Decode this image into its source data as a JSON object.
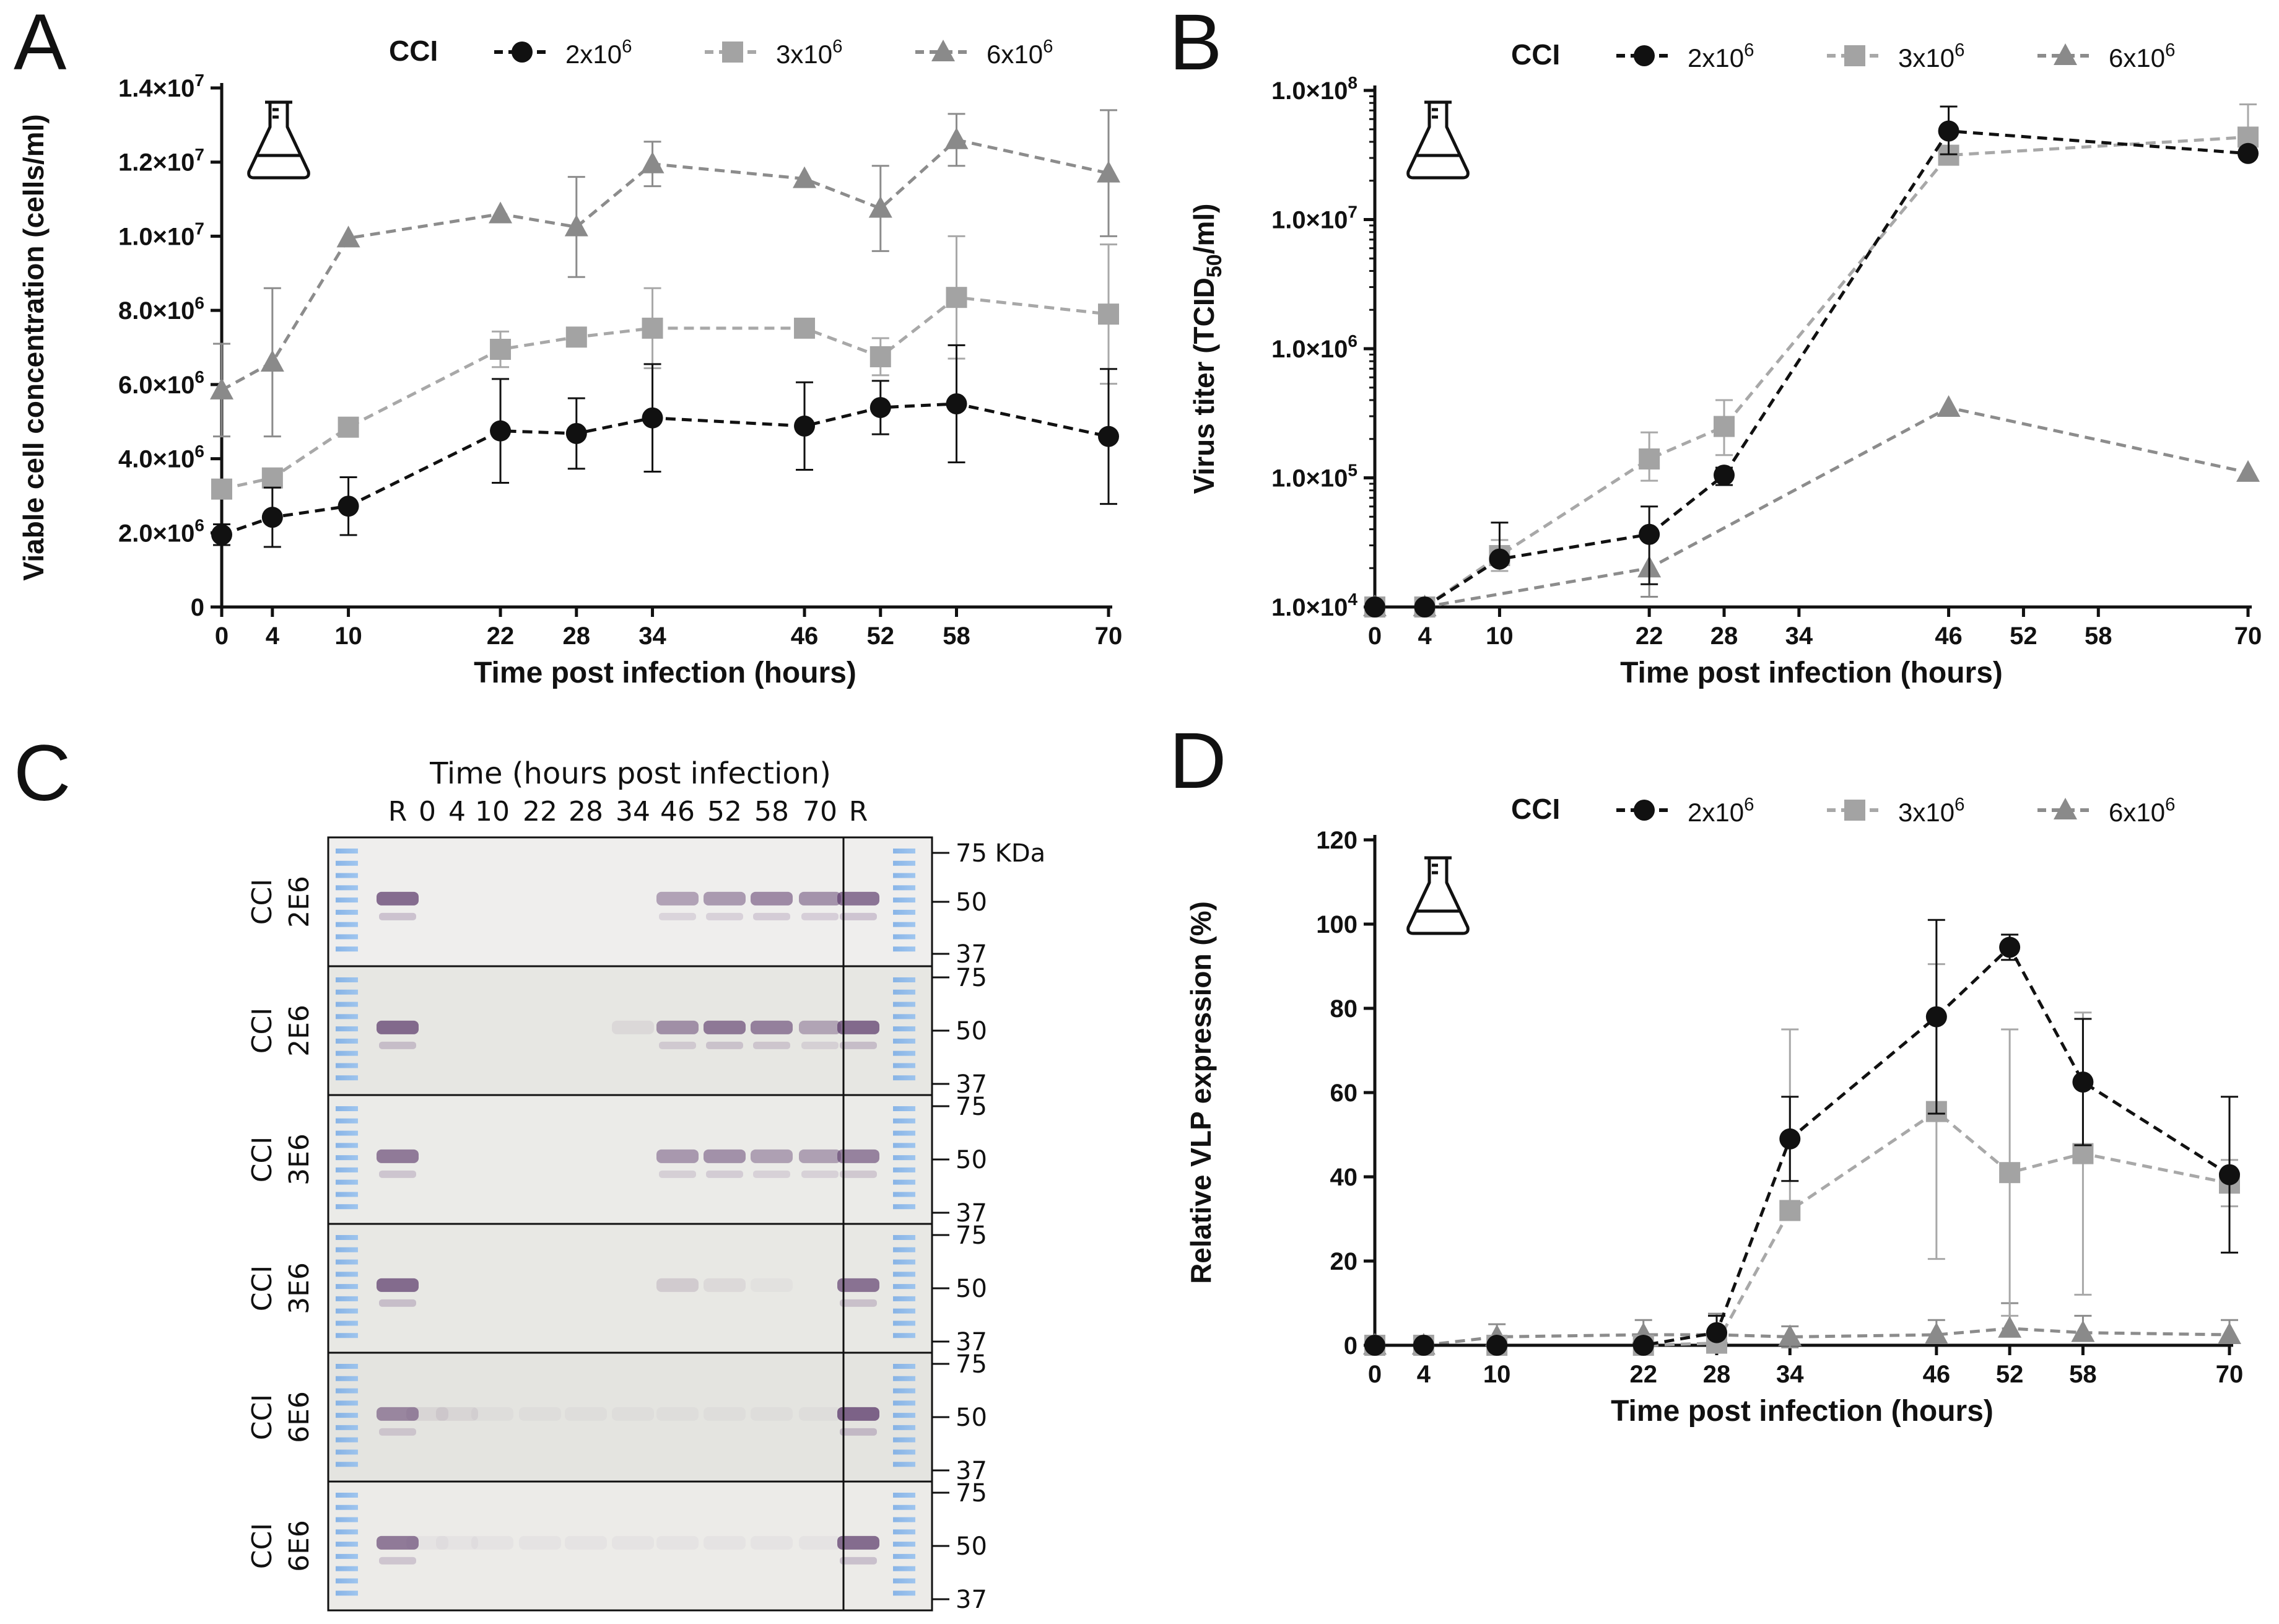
{
  "legend": {
    "label": "CCI",
    "series": [
      {
        "name": "2x10",
        "exp": "6",
        "color": "#111111",
        "marker": "circle"
      },
      {
        "name": "3x10",
        "exp": "6",
        "color": "#a3a3a3",
        "marker": "square"
      },
      {
        "name": "6x10",
        "exp": "6",
        "color": "#8a8a8a",
        "marker": "triangle"
      }
    ]
  },
  "chart_data": [
    {
      "panel": "A",
      "type": "line",
      "ylabel": "Viable cell concentration (cells/ml)",
      "xlabel": "Time post infection (hours)",
      "xticks": [
        0,
        4,
        10,
        22,
        28,
        34,
        46,
        52,
        58,
        70
      ],
      "ylim": [
        0,
        14000000
      ],
      "yticks": [
        {
          "v": 0,
          "base": "0",
          "exp": ""
        },
        {
          "v": 2000000,
          "base": "2.0×10",
          "exp": "6"
        },
        {
          "v": 4000000,
          "base": "4.0×10",
          "exp": "6"
        },
        {
          "v": 6000000,
          "base": "6.0×10",
          "exp": "6"
        },
        {
          "v": 8000000,
          "base": "8.0×10",
          "exp": "6"
        },
        {
          "v": 10000000,
          "base": "1.0×10",
          "exp": "7"
        },
        {
          "v": 12000000,
          "base": "1.2×10",
          "exp": "7"
        },
        {
          "v": 14000000,
          "base": "1.4×10",
          "exp": "7"
        }
      ],
      "series": [
        {
          "name": "2x10^6",
          "x": [
            0,
            4,
            10,
            22,
            28,
            34,
            46,
            52,
            58,
            70
          ],
          "y": [
            1950000,
            2420000,
            2720000,
            4750000,
            4680000,
            5100000,
            4880000,
            5380000,
            5480000,
            4600000
          ],
          "err": [
            280000,
            800000,
            780000,
            1400000,
            950000,
            1450000,
            1180000,
            720000,
            1580000,
            1820000
          ]
        },
        {
          "name": "3x10^6",
          "x": [
            0,
            4,
            10,
            22,
            28,
            34,
            46,
            52,
            58,
            70
          ],
          "y": [
            3180000,
            3480000,
            4850000,
            6950000,
            7280000,
            7520000,
            7520000,
            6750000,
            8350000,
            7900000
          ],
          "err": [
            0,
            0,
            0,
            480000,
            0,
            1080000,
            0,
            500000,
            1650000,
            1880000
          ]
        },
        {
          "name": "6x10^6",
          "x": [
            0,
            4,
            10,
            22,
            28,
            34,
            46,
            52,
            58,
            70
          ],
          "y": [
            5850000,
            6600000,
            9950000,
            10600000,
            10250000,
            11950000,
            11550000,
            10750000,
            12600000,
            11700000
          ],
          "err": [
            1250000,
            2000000,
            0,
            0,
            1350000,
            600000,
            0,
            1150000,
            700000,
            1700000
          ]
        }
      ]
    },
    {
      "panel": "B",
      "type": "line",
      "yscale": "log",
      "ylabel_main": "Virus titer (TCID",
      "ylabel_sub": "50",
      "ylabel_end": "/ml)",
      "xlabel": "Time post infection (hours)",
      "xticks": [
        0,
        4,
        10,
        22,
        28,
        34,
        46,
        52,
        58,
        70
      ],
      "ylim": [
        10000,
        100000000
      ],
      "yticks": [
        {
          "v": 10000,
          "base": "1.0×10",
          "exp": "4"
        },
        {
          "v": 100000,
          "base": "1.0×10",
          "exp": "5"
        },
        {
          "v": 1000000,
          "base": "1.0×10",
          "exp": "6"
        },
        {
          "v": 10000000,
          "base": "1.0×10",
          "exp": "7"
        },
        {
          "v": 100000000,
          "base": "1.0×10",
          "exp": "8"
        }
      ],
      "series": [
        {
          "name": "2x10^6",
          "x": [
            0,
            4,
            10,
            22,
            28,
            46,
            70
          ],
          "y": [
            10000,
            10000,
            23500,
            36500,
            105000,
            48500000,
            32500000
          ],
          "hi": [
            null,
            null,
            45000,
            60000,
            120000,
            75000000,
            null
          ],
          "lo": [
            null,
            null,
            null,
            15000,
            88000,
            32000000,
            null
          ]
        },
        {
          "name": "3x10^6",
          "x": [
            0,
            4,
            10,
            22,
            28,
            46,
            70
          ],
          "y": [
            10000,
            10000,
            25000,
            140000,
            250000,
            31500000,
            43500000
          ],
          "hi": [
            null,
            null,
            33000,
            225000,
            400000,
            75000000,
            78000000
          ],
          "lo": [
            null,
            null,
            19000,
            95000,
            150000,
            null,
            32000000
          ]
        },
        {
          "name": "6x10^6",
          "x": [
            0,
            4,
            22,
            46,
            70
          ],
          "y": [
            10000,
            10000,
            20000,
            350000,
            110000
          ],
          "hi": [
            null,
            null,
            null,
            null,
            null
          ],
          "lo": [
            null,
            null,
            12000,
            null,
            null
          ]
        }
      ]
    },
    {
      "panel": "D",
      "type": "line",
      "ylabel": "Relative VLP expression (%)",
      "xlabel": "Time post infection (hours)",
      "xticks": [
        0,
        4,
        10,
        22,
        28,
        34,
        46,
        52,
        58,
        70
      ],
      "ylim": [
        0,
        120
      ],
      "yticks": [
        {
          "v": 0,
          "base": "0",
          "exp": ""
        },
        {
          "v": 20,
          "base": "20",
          "exp": ""
        },
        {
          "v": 40,
          "base": "40",
          "exp": ""
        },
        {
          "v": 60,
          "base": "60",
          "exp": ""
        },
        {
          "v": 80,
          "base": "80",
          "exp": ""
        },
        {
          "v": 100,
          "base": "100",
          "exp": ""
        },
        {
          "v": 120,
          "base": "120",
          "exp": ""
        }
      ],
      "series": [
        {
          "name": "2x10^6",
          "x": [
            0,
            4,
            10,
            22,
            28,
            34,
            46,
            52,
            58,
            70
          ],
          "y": [
            0,
            0,
            0,
            0,
            3,
            49,
            78,
            94.5,
            62.5,
            40.5
          ],
          "err": [
            0,
            0,
            0,
            0,
            4,
            10,
            23,
            3,
            15,
            18.5
          ]
        },
        {
          "name": "3x10^6",
          "x": [
            0,
            4,
            10,
            22,
            28,
            34,
            46,
            52,
            58,
            70
          ],
          "y": [
            0,
            0,
            0,
            0,
            0.5,
            32,
            55.5,
            41,
            45.5,
            38.5
          ],
          "err": [
            0,
            0,
            0,
            0,
            3,
            43,
            35,
            34,
            33.5,
            5.5
          ]
        },
        {
          "name": "6x10^6",
          "x": [
            0,
            4,
            10,
            22,
            28,
            34,
            46,
            52,
            58,
            70
          ],
          "y": [
            0,
            0,
            2,
            2.5,
            2.5,
            2,
            2.5,
            4,
            3,
            2.5
          ],
          "err": [
            0,
            0,
            3,
            3.5,
            5,
            2.5,
            3.5,
            6,
            4,
            3.5
          ]
        }
      ]
    }
  ],
  "panel_c": {
    "title": "Time (hours post infection)",
    "lanes": [
      "R",
      "0",
      "4",
      "10",
      "22",
      "28",
      "34",
      "46",
      "52",
      "58",
      "70",
      "R"
    ],
    "rows": [
      {
        "cci": "CCI",
        "density": "2E6"
      },
      {
        "cci": "CCI",
        "density": "2E6"
      },
      {
        "cci": "CCI",
        "density": "3E6"
      },
      {
        "cci": "CCI",
        "density": "3E6"
      },
      {
        "cci": "CCI",
        "density": "6E6"
      },
      {
        "cci": "CCI",
        "density": "6E6"
      }
    ],
    "markers_first": [
      "75 KDa",
      "50",
      "37"
    ],
    "markers": [
      "75",
      "50",
      "37"
    ],
    "band_intensity": [
      [
        0.85,
        0,
        0,
        0,
        0,
        0,
        0,
        0.5,
        0.55,
        0.65,
        0.6,
        0.8
      ],
      [
        0.85,
        0,
        0,
        0,
        0,
        0,
        0.1,
        0.6,
        0.75,
        0.7,
        0.45,
        0.85
      ],
      [
        0.75,
        0,
        0,
        0,
        0,
        0,
        0,
        0.55,
        0.6,
        0.5,
        0.5,
        0.7
      ],
      [
        0.85,
        0,
        0,
        0,
        0,
        0,
        0,
        0.2,
        0.1,
        0.05,
        0,
        0.8
      ],
      [
        0.65,
        0.1,
        0.1,
        0.05,
        0.05,
        0.05,
        0.05,
        0.05,
        0.05,
        0.05,
        0.05,
        0.9
      ],
      [
        0.75,
        0.05,
        0.05,
        0.05,
        0.05,
        0.05,
        0.05,
        0.05,
        0.05,
        0.05,
        0.05,
        0.85
      ]
    ]
  },
  "panel_labels": {
    "a": "A",
    "b": "B",
    "c": "C",
    "d": "D"
  }
}
